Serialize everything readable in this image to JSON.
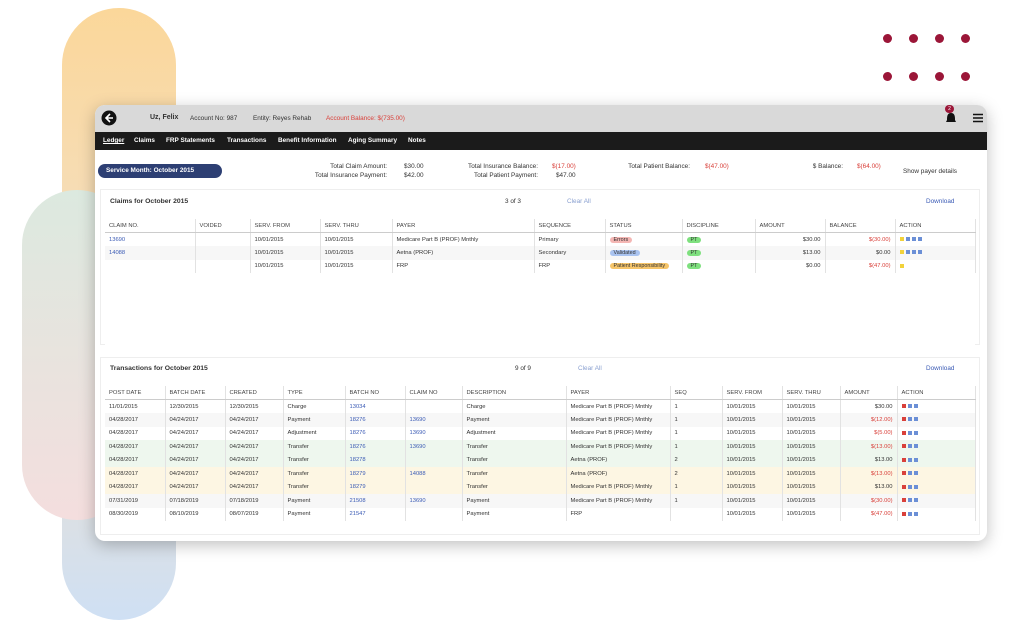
{
  "header": {
    "patient": "Uz, Felix",
    "account_no": "Account No: 987",
    "entity": "Entity: Reyes Rehab",
    "account_balance": "Account Balance: $(735.00)",
    "notifications": 2
  },
  "nav": [
    "Ledger",
    "Claims",
    "FRP Statements",
    "Transactions",
    "Benefit Information",
    "Aging Summary",
    "Notes"
  ],
  "summary": {
    "service_month": "Service Month: October 2015",
    "items": [
      {
        "label": "Total Claim Amount:",
        "value": "$30.00"
      },
      {
        "label": "Total Insurance Payment:",
        "value": "$42.00"
      },
      {
        "label": "Total Insurance Balance:",
        "value": "$(17.00)"
      },
      {
        "label": "Total Patient Payment:",
        "value": "$47.00"
      },
      {
        "label": "Total Patient Balance:",
        "value": "$(47.00)"
      },
      {
        "label": "$ Balance:",
        "value": "$(64.00)"
      }
    ],
    "show_payer_details": "Show payer details"
  },
  "claims": {
    "title": "Claims for October 2015",
    "count": "3 of 3",
    "clear": "Clear All",
    "download": "Download",
    "columns": [
      "CLAIM NO.",
      "VOIDED",
      "SERV. FROM",
      "SERV. THRU",
      "PAYER",
      "SEQUENCE",
      "STATUS",
      "DISCIPLINE",
      "AMOUNT",
      "BALANCE",
      "ACTION"
    ],
    "rows": [
      [
        "13690",
        null,
        "10/01/2015",
        "10/01/2015",
        "Medicare Part B (PROF) Mnthly",
        "Primary",
        "Errors",
        "PT",
        "$30.00",
        "$(30.00)"
      ],
      [
        "14088",
        null,
        "10/01/2015",
        "10/01/2015",
        "Aetna (PROF)",
        "Secondary",
        "Validated",
        "PT",
        "$13.00",
        "$0.00"
      ],
      [
        null,
        null,
        "10/01/2015",
        "10/01/2015",
        "FRP",
        "FRP",
        "Patient Responsibility",
        "PT",
        "$0.00",
        "$(47.00)"
      ]
    ]
  },
  "transactions": {
    "title": "Transactions for October 2015",
    "count": "9 of 9",
    "clear": "Clear All",
    "download": "Download",
    "columns": [
      "POST DATE",
      "BATCH DATE",
      "CREATED",
      "TYPE",
      "BATCH NO",
      "CLAIM NO",
      "DESCRIPTION",
      "PAYER",
      "SEQ",
      "SERV. FROM",
      "SERV. THRU",
      "AMOUNT",
      "ACTION"
    ],
    "rows": [
      [
        "11/01/2015",
        "12/30/2015",
        "12/30/2015",
        "Charge",
        "13034",
        null,
        "Charge",
        "Medicare Part B (PROF) Mnthly",
        "1",
        "10/01/2015",
        "10/01/2015",
        "$30.00"
      ],
      [
        "04/28/2017",
        "04/24/2017",
        "04/24/2017",
        "Payment",
        "18276",
        "13690",
        "Payment",
        "Medicare Part B (PROF) Mnthly",
        "1",
        "10/01/2015",
        "10/01/2015",
        "$(12.00)"
      ],
      [
        "04/28/2017",
        "04/24/2017",
        "04/24/2017",
        "Adjustment",
        "18276",
        "13690",
        "Adjustment",
        "Medicare Part B (PROF) Mnthly",
        "1",
        "10/01/2015",
        "10/01/2015",
        "$(5.00)"
      ],
      [
        "04/28/2017",
        "04/24/2017",
        "04/24/2017",
        "Transfer",
        "18276",
        "13690",
        "Transfer",
        "Medicare Part B (PROF) Mnthly",
        "1",
        "10/01/2015",
        "10/01/2015",
        "$(13.00)"
      ],
      [
        "04/28/2017",
        "04/24/2017",
        "04/24/2017",
        "Transfer",
        "18278",
        null,
        "Transfer",
        "Aetna (PROF)",
        "2",
        "10/01/2015",
        "10/01/2015",
        "$13.00"
      ],
      [
        "04/28/2017",
        "04/24/2017",
        "04/24/2017",
        "Transfer",
        "18279",
        "14088",
        "Transfer",
        "Aetna (PROF)",
        "2",
        "10/01/2015",
        "10/01/2015",
        "$(13.00)"
      ],
      [
        "04/28/2017",
        "04/24/2017",
        "04/24/2017",
        "Transfer",
        "18279",
        null,
        "Transfer",
        "Medicare Part B (PROF) Mnthly",
        "1",
        "10/01/2015",
        "10/01/2015",
        "$13.00"
      ],
      [
        "07/31/2019",
        "07/18/2019",
        "07/18/2019",
        "Payment",
        "21508",
        "13690",
        "Payment",
        "Medicare Part B (PROF) Mnthly",
        "1",
        "10/01/2015",
        "10/01/2015",
        "$(30.00)"
      ],
      [
        "08/30/2019",
        "08/10/2019",
        "08/07/2019",
        "Payment",
        "21547",
        null,
        "Payment",
        "FRP",
        null,
        "10/01/2015",
        "10/01/2015",
        "$(47.00)"
      ]
    ]
  }
}
